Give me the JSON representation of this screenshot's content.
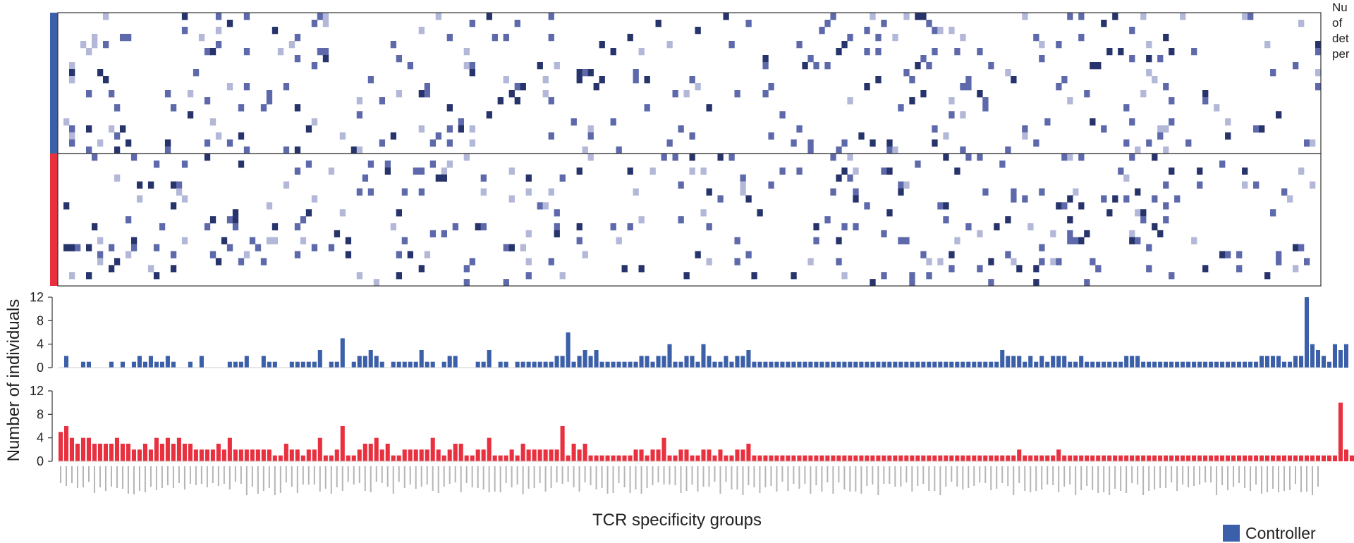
{
  "colors": {
    "controller": "#3b5fa8",
    "progressor": "#e8303f",
    "heat_high": "#27336b",
    "heat_mid": "#5d69aa",
    "heat_low": "#b3b8d8",
    "frame": "#333333"
  },
  "legend": {
    "corner_lines": [
      "Nu",
      "of",
      "det",
      "per"
    ],
    "controller_label": "Controller"
  },
  "chart_data": [
    {
      "type": "heatmap",
      "title": "",
      "xlabel": "",
      "ylabel": "",
      "rows_controller": 20,
      "rows_progressor": 19,
      "n_groups": 224,
      "fill_density": 0.065,
      "seed": 42,
      "notes_visible": "Sparse tile map; upper block = Controller (blue bar), lower block = red group"
    },
    {
      "type": "bar",
      "series": [
        {
          "name": "Controller",
          "values": [
            0,
            2,
            0,
            0,
            1,
            1,
            0,
            0,
            0,
            1,
            0,
            1,
            0,
            1,
            2,
            1,
            2,
            1,
            1,
            2,
            1,
            0,
            0,
            1,
            0,
            2,
            0,
            0,
            0,
            0,
            1,
            1,
            1,
            2,
            0,
            0,
            2,
            1,
            1,
            0,
            0,
            1,
            1,
            1,
            1,
            1,
            3,
            0,
            1,
            1,
            5,
            0,
            1,
            2,
            2,
            3,
            2,
            1,
            0,
            1,
            1,
            1,
            1,
            1,
            3,
            1,
            1,
            0,
            1,
            2,
            2,
            0,
            0,
            0,
            1,
            1,
            3,
            0,
            1,
            1,
            0,
            1,
            1,
            1,
            1,
            1,
            1,
            1,
            2,
            2,
            6,
            1,
            2,
            3,
            2,
            3,
            1,
            1,
            1,
            1,
            1,
            1,
            1,
            2,
            2,
            1,
            2,
            2,
            4,
            1,
            1,
            2,
            2,
            1,
            4,
            2,
            1,
            1,
            2,
            1,
            2,
            2,
            3,
            1,
            1,
            1,
            1,
            1,
            1,
            1,
            1,
            1,
            1,
            1,
            1,
            1,
            1,
            1,
            1,
            1,
            1,
            1,
            1,
            1,
            1,
            1,
            1,
            1,
            1,
            1,
            1,
            1,
            1,
            1,
            1,
            1,
            1,
            1,
            1,
            1,
            1,
            1,
            1,
            1,
            1,
            1,
            1,
            3,
            2,
            2,
            2,
            1,
            2,
            1,
            2,
            1,
            2,
            2,
            2,
            1,
            1,
            2,
            1,
            1,
            1,
            1,
            1,
            1,
            1,
            2,
            2,
            2,
            1,
            1,
            1,
            1,
            1,
            1,
            1,
            1,
            1,
            1,
            1,
            1,
            1,
            1,
            1,
            1,
            1,
            1,
            1,
            1,
            1,
            2,
            2,
            2,
            2,
            1,
            1,
            2,
            2,
            12,
            4,
            3,
            2,
            1,
            4,
            3,
            4
          ]
        }
      ],
      "ylim": [
        0,
        12
      ],
      "yticks": [
        0,
        4,
        8,
        12
      ]
    },
    {
      "type": "bar",
      "series": [
        {
          "name": "",
          "values": [
            5,
            6,
            4,
            3,
            4,
            4,
            3,
            3,
            3,
            3,
            4,
            3,
            3,
            2,
            2,
            3,
            2,
            4,
            3,
            4,
            3,
            4,
            3,
            3,
            2,
            2,
            2,
            2,
            3,
            2,
            4,
            2,
            2,
            2,
            2,
            2,
            2,
            2,
            1,
            1,
            3,
            2,
            2,
            1,
            2,
            2,
            4,
            1,
            1,
            2,
            6,
            1,
            1,
            2,
            3,
            3,
            4,
            2,
            3,
            1,
            1,
            2,
            2,
            2,
            2,
            2,
            4,
            2,
            1,
            2,
            3,
            3,
            1,
            1,
            2,
            2,
            4,
            1,
            1,
            1,
            2,
            1,
            3,
            2,
            2,
            2,
            2,
            2,
            2,
            6,
            1,
            3,
            2,
            3,
            1,
            1,
            1,
            1,
            1,
            1,
            1,
            1,
            2,
            2,
            1,
            2,
            2,
            4,
            1,
            1,
            2,
            2,
            1,
            1,
            2,
            2,
            1,
            2,
            1,
            1,
            2,
            2,
            3,
            1,
            1,
            1,
            1,
            1,
            1,
            1,
            1,
            1,
            1,
            1,
            1,
            1,
            1,
            1,
            1,
            1,
            1,
            1,
            1,
            1,
            1,
            1,
            1,
            1,
            1,
            1,
            1,
            1,
            1,
            1,
            1,
            1,
            1,
            1,
            1,
            1,
            1,
            1,
            1,
            1,
            1,
            1,
            1,
            1,
            1,
            1,
            2,
            1,
            1,
            1,
            1,
            1,
            1,
            2,
            1,
            1,
            1,
            1,
            1,
            1,
            1,
            1,
            1,
            1,
            1,
            1,
            1,
            1,
            1,
            1,
            1,
            1,
            1,
            1,
            1,
            1,
            1,
            1,
            1,
            1,
            1,
            1,
            1,
            1,
            1,
            1,
            1,
            1,
            1,
            1,
            1,
            1,
            1,
            1,
            1,
            1,
            1,
            1,
            1,
            1,
            1,
            1,
            1,
            10,
            2,
            1
          ]
        }
      ],
      "ylim": [
        0,
        12
      ],
      "yticks": [
        0,
        4,
        8,
        12
      ]
    }
  ],
  "axes": {
    "ylabel": "Number of individuals",
    "xlabel": "TCR specificity groups",
    "ytick_labels": [
      "0",
      "4",
      "8",
      "12"
    ]
  }
}
